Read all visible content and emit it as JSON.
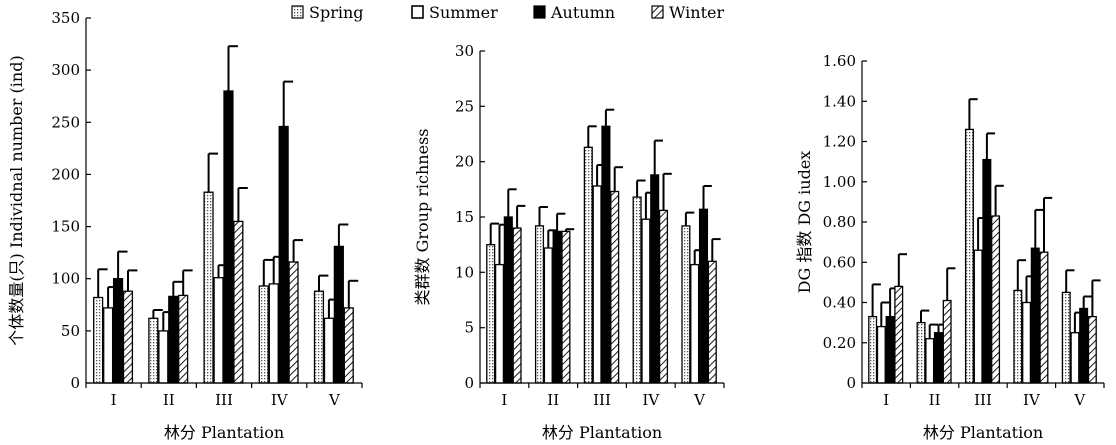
{
  "legend": {
    "placement": "top-center",
    "entries": [
      {
        "name": "Spring",
        "pattern": "dots"
      },
      {
        "name": "Summer",
        "pattern": "white"
      },
      {
        "name": "Autumn",
        "pattern": "black"
      },
      {
        "name": "Winter",
        "pattern": "hatch"
      }
    ]
  },
  "chart_data": [
    {
      "type": "bar",
      "categories": [
        "I",
        "II",
        "III",
        "IV",
        "V"
      ],
      "xlabel": "林分 Plantation",
      "ylabel": "个体数量(只) Individnal number (ind)",
      "ylim": [
        0,
        350
      ],
      "yticks": [
        "0",
        "50",
        "100",
        "150",
        "200",
        "250",
        "300",
        "350"
      ],
      "series": [
        {
          "name": "Spring",
          "values": [
            82,
            62,
            183,
            93,
            88
          ],
          "errors": [
            27,
            8,
            37,
            25,
            15
          ]
        },
        {
          "name": "Summer",
          "values": [
            72,
            50,
            101,
            95,
            62
          ],
          "errors": [
            20,
            18,
            12,
            26,
            18
          ]
        },
        {
          "name": "Autumn",
          "values": [
            100,
            83,
            280,
            246,
            131
          ],
          "errors": [
            26,
            14,
            43,
            43,
            21
          ]
        },
        {
          "name": "Winter",
          "values": [
            88,
            84,
            155,
            116,
            72
          ],
          "errors": [
            20,
            24,
            32,
            21,
            26
          ]
        }
      ]
    },
    {
      "type": "bar",
      "categories": [
        "I",
        "II",
        "III",
        "IV",
        "V"
      ],
      "xlabel": "林分 Plantation",
      "ylabel": "类群数 Group richness",
      "ylim": [
        0,
        30
      ],
      "yticks": [
        "0",
        "5",
        "10",
        "15",
        "20",
        "25",
        "30"
      ],
      "series": [
        {
          "name": "Spring",
          "values": [
            12.5,
            14.2,
            21.3,
            16.8,
            14.2
          ],
          "errors": [
            1.9,
            1.7,
            1.9,
            1.5,
            1.2
          ]
        },
        {
          "name": "Summer",
          "values": [
            10.7,
            12.2,
            17.8,
            14.8,
            10.7
          ],
          "errors": [
            3.6,
            1.6,
            1.9,
            2.4,
            1.3
          ]
        },
        {
          "name": "Autumn",
          "values": [
            15.0,
            13.7,
            23.2,
            18.8,
            15.7
          ],
          "errors": [
            2.5,
            1.6,
            1.5,
            3.1,
            2.1
          ]
        },
        {
          "name": "Winter",
          "values": [
            14.0,
            13.7,
            17.3,
            15.6,
            11.0
          ],
          "errors": [
            2.0,
            0.2,
            2.2,
            3.3,
            2.0
          ]
        }
      ]
    },
    {
      "type": "bar",
      "categories": [
        "I",
        "II",
        "III",
        "IV",
        "V"
      ],
      "xlabel": "林分 Plantation",
      "ylabel": "DG 指数 DG iudex",
      "ylim": [
        0,
        1.6
      ],
      "yticks": [
        "0",
        "0.20",
        "0.40",
        "0.60",
        "0.80",
        "1.00",
        "1.20",
        "1.40",
        "1.60"
      ],
      "series": [
        {
          "name": "Spring",
          "values": [
            0.33,
            0.3,
            1.26,
            0.46,
            0.45
          ],
          "errors": [
            0.16,
            0.06,
            0.15,
            0.15,
            0.11
          ]
        },
        {
          "name": "Summer",
          "values": [
            0.28,
            0.22,
            0.66,
            0.4,
            0.25
          ],
          "errors": [
            0.12,
            0.07,
            0.16,
            0.13,
            0.1
          ]
        },
        {
          "name": "Autumn",
          "values": [
            0.33,
            0.25,
            1.11,
            0.67,
            0.37
          ],
          "errors": [
            0.14,
            0.04,
            0.13,
            0.19,
            0.06
          ]
        },
        {
          "name": "Winter",
          "values": [
            0.48,
            0.41,
            0.83,
            0.65,
            0.33
          ],
          "errors": [
            0.16,
            0.16,
            0.15,
            0.27,
            0.18
          ]
        }
      ]
    }
  ]
}
